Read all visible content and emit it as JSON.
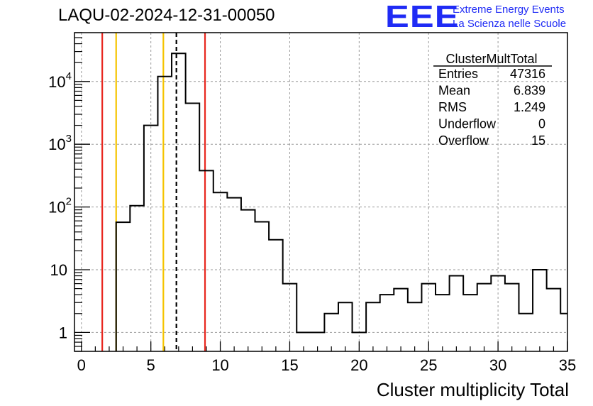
{
  "title": "LAQU-02-2024-12-31-00050",
  "logo": {
    "mark": "EEE",
    "line1": "Extreme Energy Events",
    "line2": "La Scienza nelle Scuole",
    "color": "#1f2bf5"
  },
  "stats": {
    "header": "ClusterMultTotal",
    "rows": [
      {
        "label": "Entries",
        "value": "47316"
      },
      {
        "label": "Mean",
        "value": "6.839"
      },
      {
        "label": "RMS",
        "value": "1.249"
      },
      {
        "label": "Underflow",
        "value": "0"
      },
      {
        "label": "Overflow",
        "value": "15"
      }
    ]
  },
  "chart_data": {
    "type": "bar",
    "histogram": true,
    "xlabel": "Cluster multiplicity Total",
    "ylabel": "",
    "xlim": [
      -0.5,
      35
    ],
    "ylim": [
      0.5,
      60000
    ],
    "log_y": true,
    "grid": true,
    "x_ticks": [
      0,
      5,
      10,
      15,
      20,
      25,
      30,
      35
    ],
    "y_ticks": [
      {
        "value": 1,
        "base": "1",
        "exp": ""
      },
      {
        "value": 10,
        "base": "10",
        "exp": ""
      },
      {
        "value": 100,
        "base": "10",
        "exp": "2"
      },
      {
        "value": 1000,
        "base": "10",
        "exp": "3"
      },
      {
        "value": 10000,
        "base": "10",
        "exp": "4"
      }
    ],
    "bin_width": 1,
    "bins_start": [
      2.5,
      3.5,
      4.5,
      5.5,
      6.5,
      7.5,
      8.5,
      9.5,
      10.5,
      11.5,
      12.5,
      13.5,
      14.5,
      15.5,
      16.5,
      17.5,
      18.5,
      19.5,
      20.5,
      21.5,
      22.5,
      23.5,
      24.5,
      25.5,
      26.5,
      27.5,
      28.5,
      29.5,
      30.5,
      31.5,
      32.5,
      33.5,
      34.5
    ],
    "values": [
      57,
      105,
      2000,
      12000,
      28000,
      4500,
      380,
      170,
      140,
      90,
      58,
      30,
      6,
      1,
      1,
      2,
      3,
      1,
      3,
      4,
      5,
      3,
      6,
      4,
      8,
      4,
      6,
      8,
      6,
      2,
      10,
      5,
      2
    ],
    "vlines": [
      {
        "x": 1.5,
        "color": "#e8271f",
        "style": "solid"
      },
      {
        "x": 2.5,
        "color": "#f5c400",
        "style": "solid"
      },
      {
        "x": 5.9,
        "color": "#f5c400",
        "style": "solid"
      },
      {
        "x": 6.839,
        "color": "#000000",
        "style": "dashed"
      },
      {
        "x": 8.9,
        "color": "#e8271f",
        "style": "solid"
      }
    ]
  }
}
